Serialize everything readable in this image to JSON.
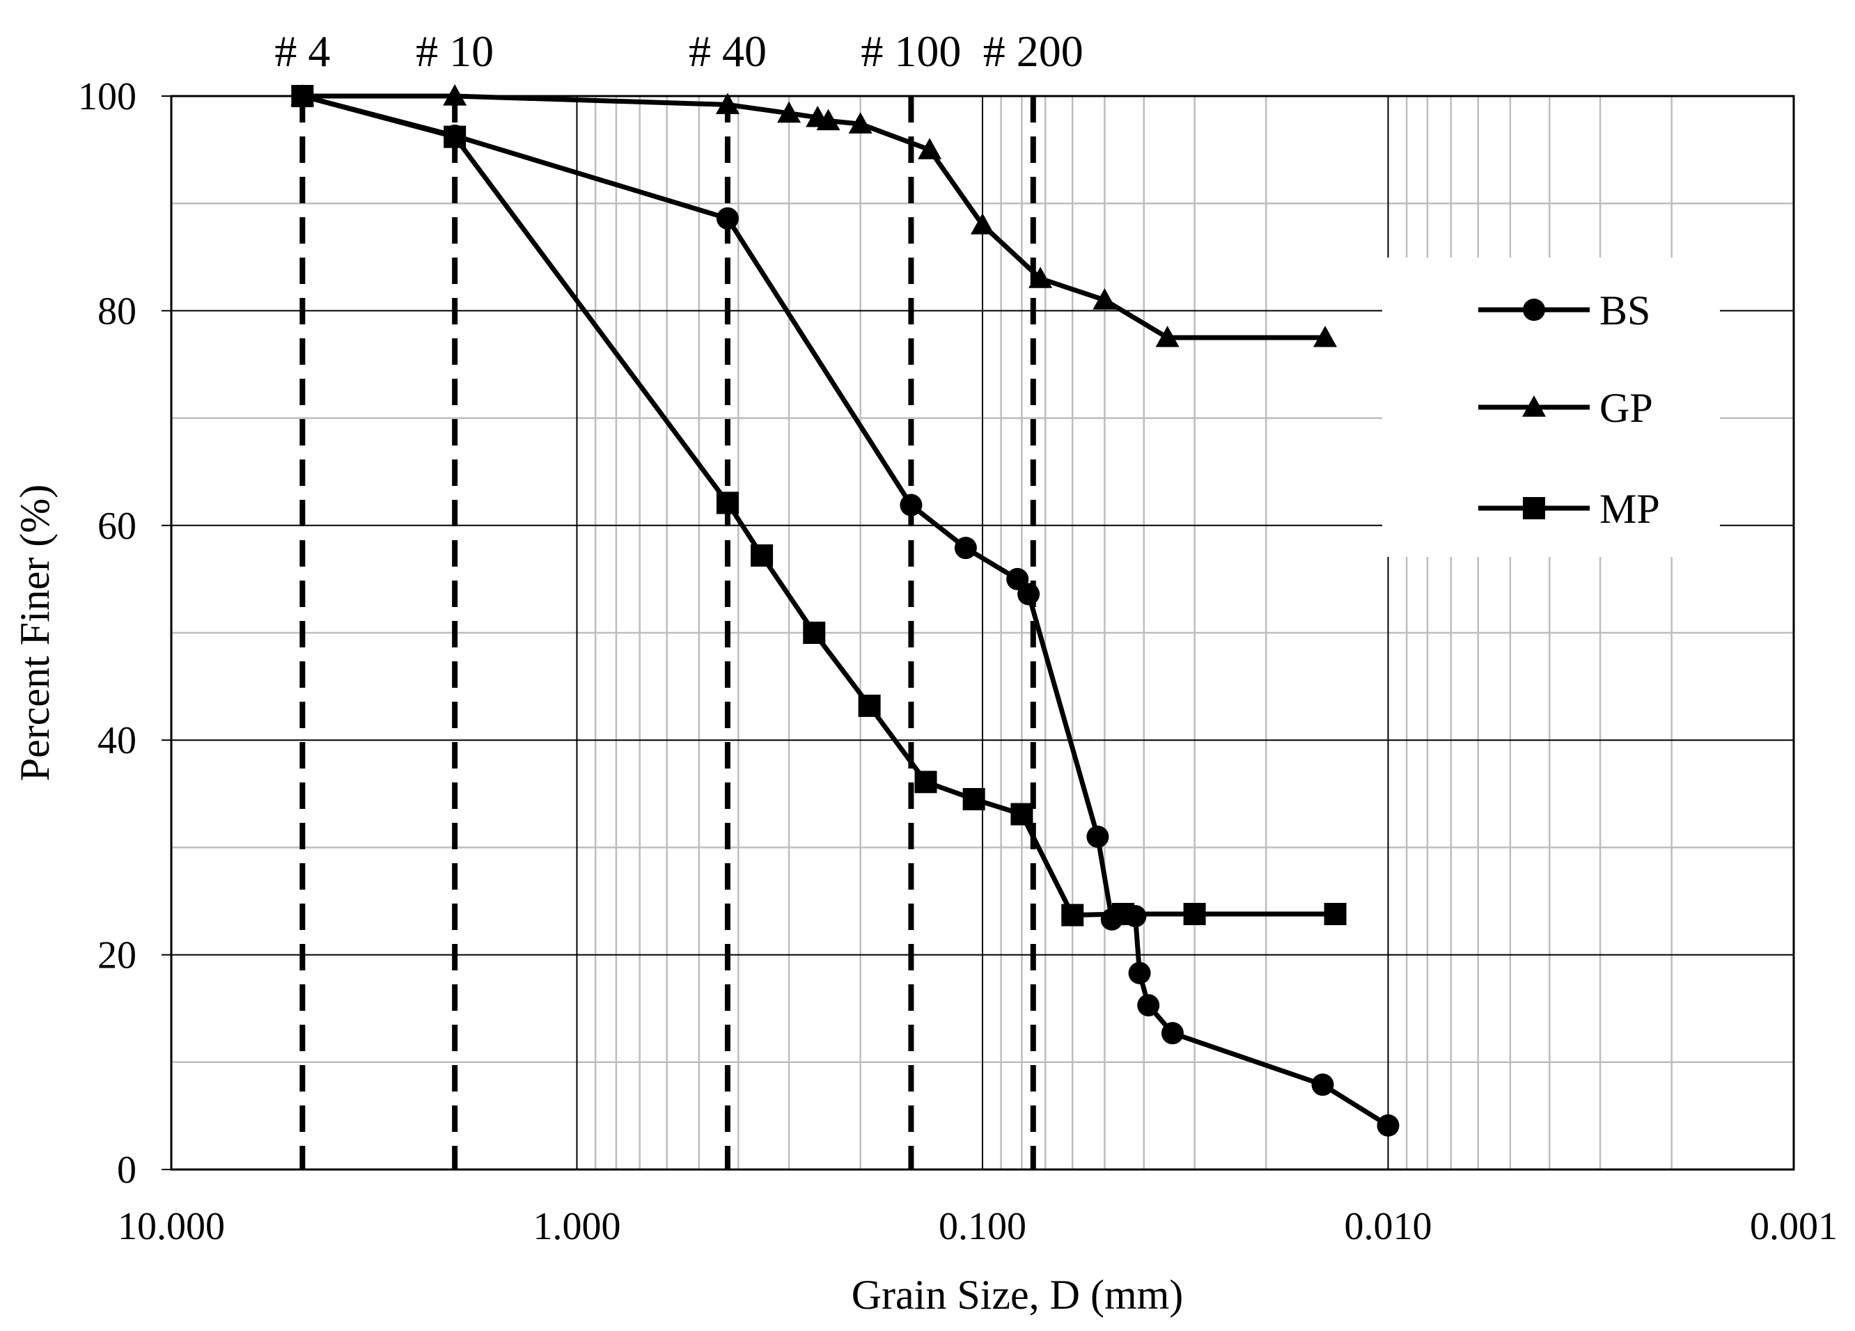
{
  "chart_data": {
    "type": "line",
    "xlabel": "Grain Size, D (mm)",
    "ylabel": "Percent Finer (%)",
    "x_scale": "log",
    "x_reversed": true,
    "xlim": [
      10,
      0.001
    ],
    "ylim": [
      0,
      100
    ],
    "x_ticks": [
      10,
      1,
      0.1,
      0.01,
      0.001
    ],
    "x_tick_labels": [
      "10.000",
      "1.000",
      "0.100",
      "0.010",
      "0.001"
    ],
    "y_ticks": [
      0,
      20,
      40,
      60,
      80,
      100
    ],
    "y_tick_labels": [
      "0",
      "20",
      "40",
      "60",
      "80",
      "100"
    ],
    "grid": true,
    "legend_position": "right",
    "sieves": [
      {
        "label": "# 4",
        "size": 4.75
      },
      {
        "label": "# 10",
        "size": 2.0
      },
      {
        "label": "# 40",
        "size": 0.425
      },
      {
        "label": "# 100",
        "size": 0.15
      },
      {
        "label": "# 200",
        "size": 0.075
      }
    ],
    "series": [
      {
        "name": "BS",
        "marker": "circle",
        "x": [
          4.75,
          2.0,
          0.425,
          0.15,
          0.11,
          0.082,
          0.077,
          0.052,
          0.048,
          0.042,
          0.041,
          0.039,
          0.034,
          0.0145,
          0.01
        ],
        "y": [
          100,
          96.3,
          88.6,
          61.9,
          57.9,
          55.0,
          53.6,
          31.0,
          23.3,
          23.6,
          18.3,
          15.3,
          12.7,
          7.9,
          4.1
        ]
      },
      {
        "name": "GP",
        "marker": "triangle",
        "x": [
          4.75,
          2.0,
          0.425,
          0.3,
          0.255,
          0.24,
          0.2,
          0.135,
          0.1,
          0.072,
          0.05,
          0.035,
          0.0143
        ],
        "y": [
          100,
          100,
          99.2,
          98.4,
          98.0,
          97.7,
          97.4,
          95.0,
          88.0,
          83.0,
          81.0,
          77.5,
          77.5
        ]
      },
      {
        "name": "MP",
        "marker": "square",
        "x": [
          4.75,
          2.0,
          0.425,
          0.35,
          0.26,
          0.19,
          0.138,
          0.105,
          0.08,
          0.06,
          0.045,
          0.03,
          0.0135
        ],
        "y": [
          100,
          96.2,
          62.1,
          57.2,
          50.0,
          43.2,
          36.1,
          34.5,
          33.1,
          23.7,
          23.8,
          23.8,
          23.8
        ]
      }
    ]
  }
}
